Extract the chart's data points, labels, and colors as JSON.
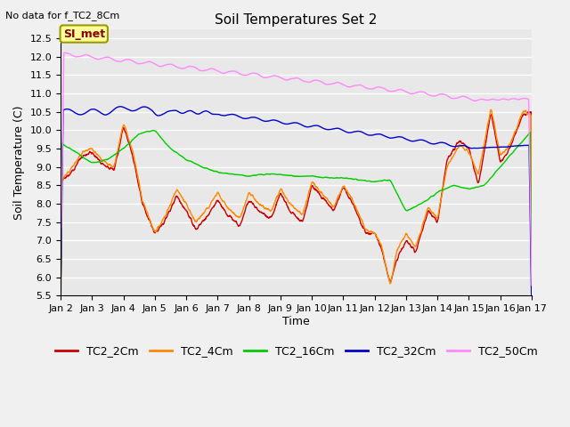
{
  "title": "Soil Temperatures Set 2",
  "subtitle": "No data for f_TC2_8Cm",
  "xlabel": "Time",
  "ylabel": "Soil Temperature (C)",
  "ylim": [
    5.5,
    12.75
  ],
  "yticks": [
    5.5,
    6.0,
    6.5,
    7.0,
    7.5,
    8.0,
    8.5,
    9.0,
    9.5,
    10.0,
    10.5,
    11.0,
    11.5,
    12.0,
    12.5
  ],
  "xtick_labels": [
    "Jan 2",
    "Jan 3",
    "Jan 4",
    "Jan 5",
    "Jan 6",
    "Jan 7",
    "Jan 8",
    "Jan 9",
    "Jan 10",
    "Jan 11",
    "Jan 12",
    "Jan 13",
    "Jan 14",
    "Jan 15",
    "Jan 16",
    "Jan 17"
  ],
  "series_colors": {
    "TC2_2Cm": "#cc0000",
    "TC2_4Cm": "#ff8800",
    "TC2_16Cm": "#00cc00",
    "TC2_32Cm": "#0000cc",
    "TC2_50Cm": "#ff88ff"
  },
  "legend_labels": [
    "TC2_2Cm",
    "TC2_4Cm",
    "TC2_16Cm",
    "TC2_32Cm",
    "TC2_50Cm"
  ],
  "fig_bg_color": "#f0f0f0",
  "plot_bg_color": "#e8e8e8",
  "grid_color": "#ffffff",
  "annotation_text": "SI_met",
  "annotation_box_color": "#ffff99",
  "annotation_border_color": "#999900",
  "title_fontsize": 11,
  "axis_fontsize": 9,
  "tick_fontsize": 8,
  "legend_fontsize": 9
}
